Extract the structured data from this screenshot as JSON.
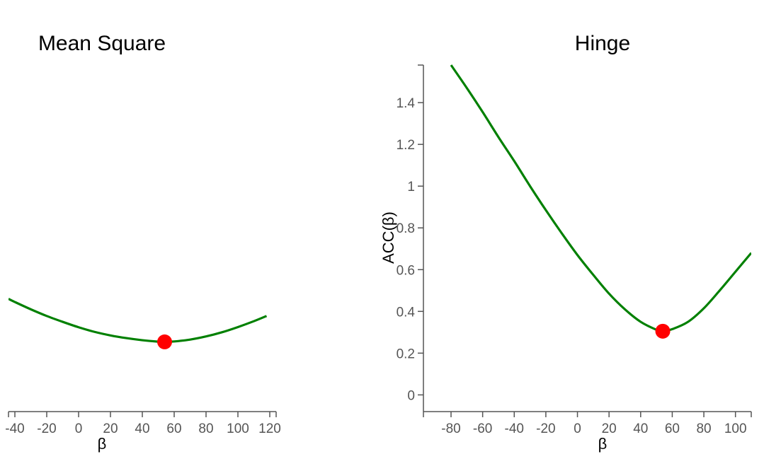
{
  "chart_data": [
    {
      "type": "line",
      "title": "Mean Square",
      "xlabel": "β",
      "ylabel": "",
      "xlim": [
        -44,
        124
      ],
      "ylim": [
        -0.08,
        1.58
      ],
      "x_ticks": [
        -40,
        -20,
        0,
        20,
        40,
        60,
        80,
        100,
        120
      ],
      "y_ticks": [],
      "x_tick_labels": [
        "-40",
        "-20",
        "0",
        "20",
        "40",
        "60",
        "80",
        "100",
        "120"
      ],
      "series": [
        {
          "color": "#008000",
          "x": [
            -44,
            -40,
            -30,
            -20,
            -10,
            0,
            10,
            20,
            30,
            40,
            50,
            54,
            60,
            70,
            80,
            90,
            100,
            110,
            118
          ],
          "y": [
            0.46,
            0.445,
            0.41,
            0.378,
            0.35,
            0.324,
            0.302,
            0.285,
            0.272,
            0.262,
            0.255,
            0.254,
            0.256,
            0.265,
            0.28,
            0.3,
            0.325,
            0.353,
            0.378
          ]
        }
      ],
      "highlight_point": {
        "x": 54,
        "y": 0.254,
        "color": "#ff0000"
      }
    },
    {
      "type": "line",
      "title": "Hinge",
      "xlabel": "β",
      "ylabel": "ACC(β)",
      "xlim": [
        -93,
        110
      ],
      "ylim": [
        -0.08,
        1.58
      ],
      "x_ticks": [
        -80,
        -60,
        -40,
        -20,
        0,
        20,
        40,
        60,
        80,
        100
      ],
      "y_ticks": [
        0,
        0.2,
        0.4,
        0.6,
        0.8,
        1,
        1.2,
        1.4
      ],
      "x_tick_labels": [
        "-80",
        "-60",
        "-40",
        "-20",
        "0",
        "20",
        "40",
        "60",
        "80",
        "100"
      ],
      "y_tick_labels": [
        "0",
        "0.2",
        "0.4",
        "0.6",
        "0.8",
        "1",
        "1.2",
        "1.4"
      ],
      "series": [
        {
          "color": "#008000",
          "x": [
            -80,
            -70,
            -60,
            -50,
            -40,
            -30,
            -20,
            -10,
            0,
            10,
            20,
            30,
            40,
            50,
            54,
            60,
            70,
            80,
            90,
            100,
            110
          ],
          "y": [
            1.58,
            1.47,
            1.355,
            1.235,
            1.12,
            1.0,
            0.885,
            0.775,
            0.67,
            0.575,
            0.485,
            0.41,
            0.35,
            0.312,
            0.305,
            0.315,
            0.35,
            0.415,
            0.5,
            0.59,
            0.68
          ]
        }
      ],
      "highlight_point": {
        "x": 54,
        "y": 0.305,
        "color": "#ff0000"
      }
    }
  ]
}
